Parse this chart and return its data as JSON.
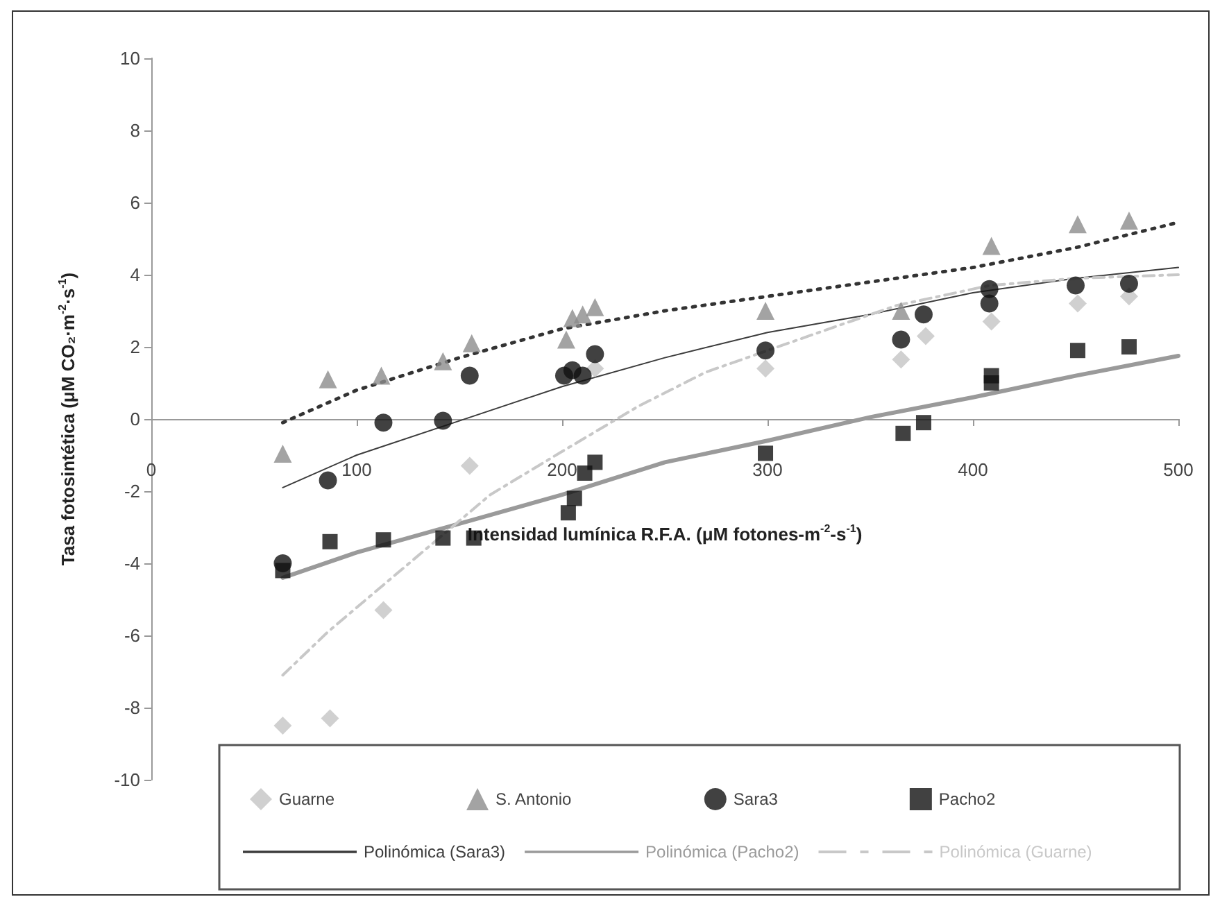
{
  "chart_data": {
    "type": "scatter",
    "xlabel": "Intensidad lumínica R.F.A. (μM fotones-m$^{-2}$-s$^{-1}$)",
    "ylabel": "Tasa fotosintética (μM CO₂·m$^{-2}$·s$^{-1}$)",
    "xlim": [
      0,
      500
    ],
    "xticks": [
      0,
      100,
      200,
      300,
      400,
      500
    ],
    "ylim": [
      -10,
      10
    ],
    "yticks": [
      -10,
      -8,
      -6,
      -4,
      -2,
      0,
      2,
      4,
      6,
      8,
      10
    ],
    "grid": false,
    "legend": "bottom",
    "series": [
      {
        "name": "Guarne",
        "marker": "diamond",
        "color": "#c4c4c4",
        "x": [
          64,
          87,
          113,
          155,
          205,
          216,
          299,
          365,
          377,
          409,
          451,
          476
        ],
        "values": [
          -8.5,
          -8.3,
          -5.3,
          -1.3,
          null,
          1.4,
          1.4,
          1.65,
          2.3,
          2.7,
          3.2,
          3.4
        ]
      },
      {
        "name": "S. Antonio",
        "marker": "triangle",
        "color": "#8c8c8c",
        "x": [
          64,
          86,
          112,
          142,
          156,
          202,
          205,
          210,
          216,
          299,
          365,
          409,
          451,
          476
        ],
        "values": [
          -0.96,
          1.1,
          1.2,
          1.6,
          2.1,
          2.2,
          2.8,
          2.9,
          3.1,
          3.0,
          3.0,
          4.8,
          5.4,
          5.5
        ]
      },
      {
        "name": "Sara3",
        "marker": "circle",
        "color": "#111111",
        "x": [
          64,
          86,
          113,
          142,
          155,
          201,
          205,
          210,
          216,
          299,
          365,
          376,
          408,
          408,
          450,
          476
        ],
        "values": [
          -4.0,
          -1.7,
          -0.1,
          -0.05,
          1.2,
          1.2,
          1.35,
          1.2,
          1.8,
          1.9,
          2.2,
          2.9,
          3.6,
          3.2,
          3.7,
          3.75
        ]
      },
      {
        "name": "Pacho2",
        "marker": "square",
        "color": "#111111",
        "x": [
          64,
          87,
          113,
          142,
          157,
          203,
          206,
          211,
          216,
          299,
          366,
          376,
          409,
          409,
          451,
          476
        ],
        "values": [
          -4.2,
          -3.4,
          -3.35,
          -3.3,
          -3.3,
          -2.6,
          -2.2,
          -1.5,
          -1.2,
          -0.95,
          -0.4,
          -0.1,
          1.0,
          1.2,
          1.9,
          2.0
        ]
      },
      {
        "name": "Polinómica (Sara3)",
        "type": "line",
        "marker": "none",
        "line_style": "solid",
        "color": "#3c3c3c",
        "x": [
          64,
          100,
          150,
          200,
          250,
          300,
          350,
          400,
          450,
          500
        ],
        "values": [
          -1.9,
          -1.0,
          -0.05,
          0.9,
          1.7,
          2.4,
          2.9,
          3.5,
          3.9,
          4.2
        ]
      },
      {
        "name": "Polinómica (Pacho2)",
        "type": "line",
        "marker": "none",
        "line_style": "solid",
        "color": "#9a9a9a",
        "x": [
          64,
          100,
          150,
          200,
          250,
          300,
          350,
          400,
          450,
          500
        ],
        "values": [
          -4.4,
          -3.7,
          -2.9,
          -2.1,
          -1.2,
          -0.6,
          0.05,
          0.6,
          1.2,
          1.75
        ]
      },
      {
        "name": "Polinómica (Guarne)",
        "type": "line",
        "marker": "none",
        "line_style": "dashed",
        "color": "#c8c8c8",
        "x": [
          64,
          86,
          113,
          138,
          165,
          200,
          237,
          270,
          300,
          335,
          363,
          408,
          450,
          500
        ],
        "values": [
          -7.1,
          -5.9,
          -4.6,
          -3.4,
          -2.1,
          -0.9,
          0.35,
          1.3,
          1.9,
          2.6,
          3.15,
          3.7,
          3.9,
          4.0
        ]
      },
      {
        "type": "line",
        "marker": "none",
        "line_style": "dotted",
        "color": "#333333",
        "x": [
          64,
          100,
          150,
          200,
          250,
          300,
          350,
          400,
          450,
          500
        ],
        "values": [
          -0.1,
          0.8,
          1.7,
          2.5,
          3.0,
          3.4,
          3.8,
          4.2,
          4.75,
          5.45
        ]
      }
    ]
  }
}
